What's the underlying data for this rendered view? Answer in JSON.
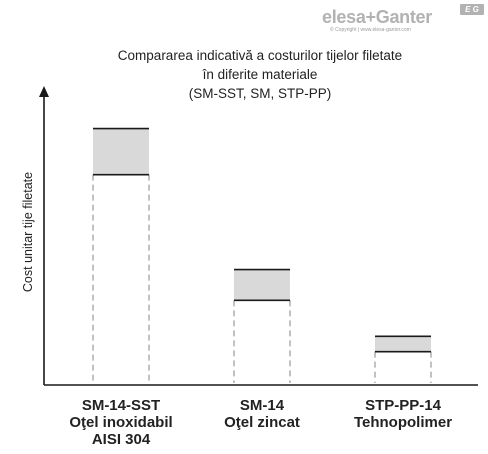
{
  "brand": {
    "logo_text": "elesa+Ganter",
    "badge": "E G",
    "copyright": "© Copyright | www.elesa-ganter.com"
  },
  "chart_data": {
    "type": "bar",
    "title": [
      "Compararea indicativă a costurilor tijelor filetate",
      "în diferite materiale",
      "(SM-SST, SM, STP-PP)"
    ],
    "ylabel": "Cost unitar tije filetate",
    "xlabel": "",
    "categories": [
      [
        "SM-14-SST",
        "Oţel inoxidabil",
        "AISI 304"
      ],
      [
        "SM-14",
        "Oţel zincat"
      ],
      [
        "STP-PP-14",
        "Tehnopolimer"
      ]
    ],
    "ranges": [
      {
        "low": 82,
        "high": 100
      },
      {
        "low": 33,
        "high": 45
      },
      {
        "low": 13,
        "high": 19
      }
    ],
    "ylim": [
      0,
      108
    ],
    "ticks": false,
    "grid": false,
    "colors": {
      "fill": "#d9d9d9",
      "edge": "#1a1a1a",
      "axis": "#1a1a1a",
      "guide": "#999999"
    }
  }
}
